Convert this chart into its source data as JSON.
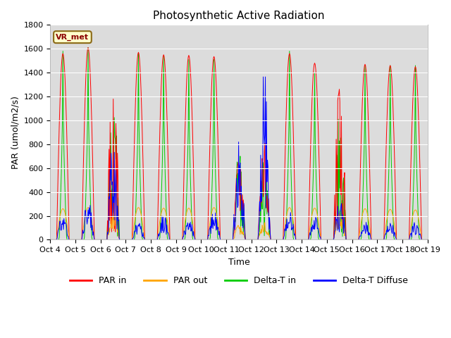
{
  "title": "Photosynthetic Active Radiation",
  "ylabel": "PAR (umol/m2/s)",
  "xlabel": "Time",
  "legend_label": "VR_met",
  "ylim": [
    0,
    1800
  ],
  "series_labels": [
    "PAR in",
    "PAR out",
    "Delta-T in",
    "Delta-T Diffuse"
  ],
  "series_colors": [
    "#ff0000",
    "#ffa500",
    "#00cc00",
    "#0000ff"
  ],
  "xtick_labels": [
    "Oct 4",
    "Oct 5",
    "Oct 6",
    "Oct 7",
    "Oct 8",
    "Oct 9",
    "Oct 10",
    "Oct 11",
    "Oct 12",
    "Oct 13",
    "Oct 14",
    "Oct 15",
    "Oct 16",
    "Oct 17",
    "Oct 18",
    "Oct 19"
  ],
  "bg_color": "#dcdcdc",
  "grid_color": "#ffffff",
  "line_width": 0.7
}
